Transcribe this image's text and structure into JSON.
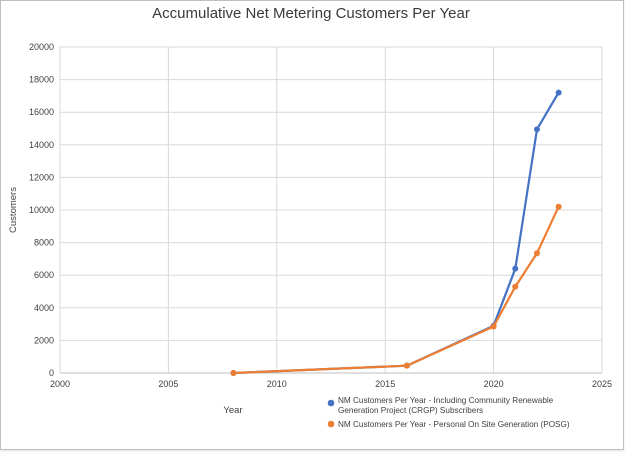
{
  "chart_data": {
    "type": "line",
    "title": "Accumulative Net Metering Customers Per Year",
    "xlabel": "Year",
    "ylabel": "Customers",
    "xlim": [
      2000,
      2025
    ],
    "ylim": [
      0,
      20000
    ],
    "xticks": [
      2000,
      2005,
      2010,
      2015,
      2020,
      2025
    ],
    "yticks": [
      0,
      2000,
      4000,
      6000,
      8000,
      10000,
      12000,
      14000,
      16000,
      18000,
      20000
    ],
    "grid": true,
    "legend_position": "bottom-right",
    "series": [
      {
        "name_lines": [
          "NM Customers Per Year - Including Community Renewable",
          "Generation Project (CRGP) Subscribers"
        ],
        "color": "#4472c4",
        "points": [
          [
            2008,
            0
          ],
          [
            2016,
            450
          ],
          [
            2020,
            2900
          ],
          [
            2021,
            6400
          ],
          [
            2022,
            14950
          ],
          [
            2023,
            17200
          ]
        ]
      },
      {
        "name_lines": [
          "NM Customers Per Year - Personal On Site Generation (POSG)"
        ],
        "color": "#ed7d31",
        "points": [
          [
            2008,
            0
          ],
          [
            2016,
            450
          ],
          [
            2020,
            2850
          ],
          [
            2021,
            5300
          ],
          [
            2022,
            7350
          ],
          [
            2023,
            10200
          ]
        ]
      }
    ]
  }
}
